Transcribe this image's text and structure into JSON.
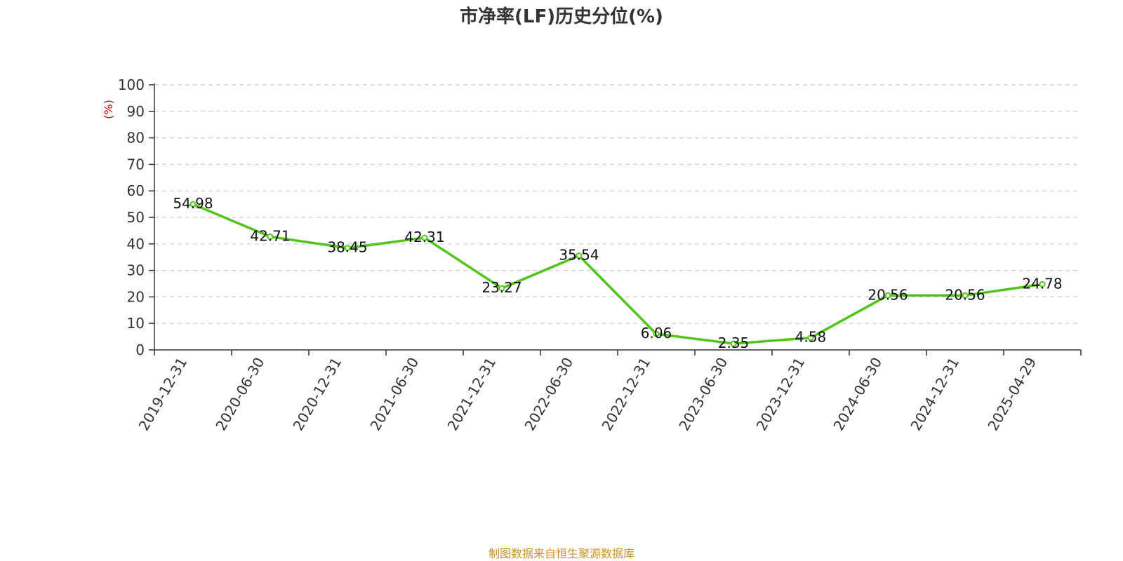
{
  "chart_data": {
    "type": "line",
    "title": "市净率(LF)历史分位(%)",
    "ylabel": "(%)",
    "ylim": [
      0,
      100
    ],
    "yticks": [
      0,
      10,
      20,
      30,
      40,
      50,
      60,
      70,
      80,
      90,
      100
    ],
    "grid": true,
    "categories": [
      "2019-12-31",
      "2020-06-30",
      "2020-12-31",
      "2021-06-30",
      "2021-12-31",
      "2022-06-30",
      "2022-12-31",
      "2023-06-30",
      "2023-12-31",
      "2024-06-30",
      "2024-12-31",
      "2025-04-29"
    ],
    "series": [
      {
        "values": [
          54.98,
          42.71,
          38.45,
          42.31,
          23.27,
          35.54,
          6.06,
          2.35,
          4.58,
          20.56,
          20.56,
          24.78
        ]
      }
    ]
  },
  "source": "制图数据来自恒生聚源数据库",
  "colors": {
    "line": "#52c41a",
    "grid": "#cccccc",
    "axis": "#333333",
    "unit": "#e60000",
    "source": "#c8922a"
  }
}
